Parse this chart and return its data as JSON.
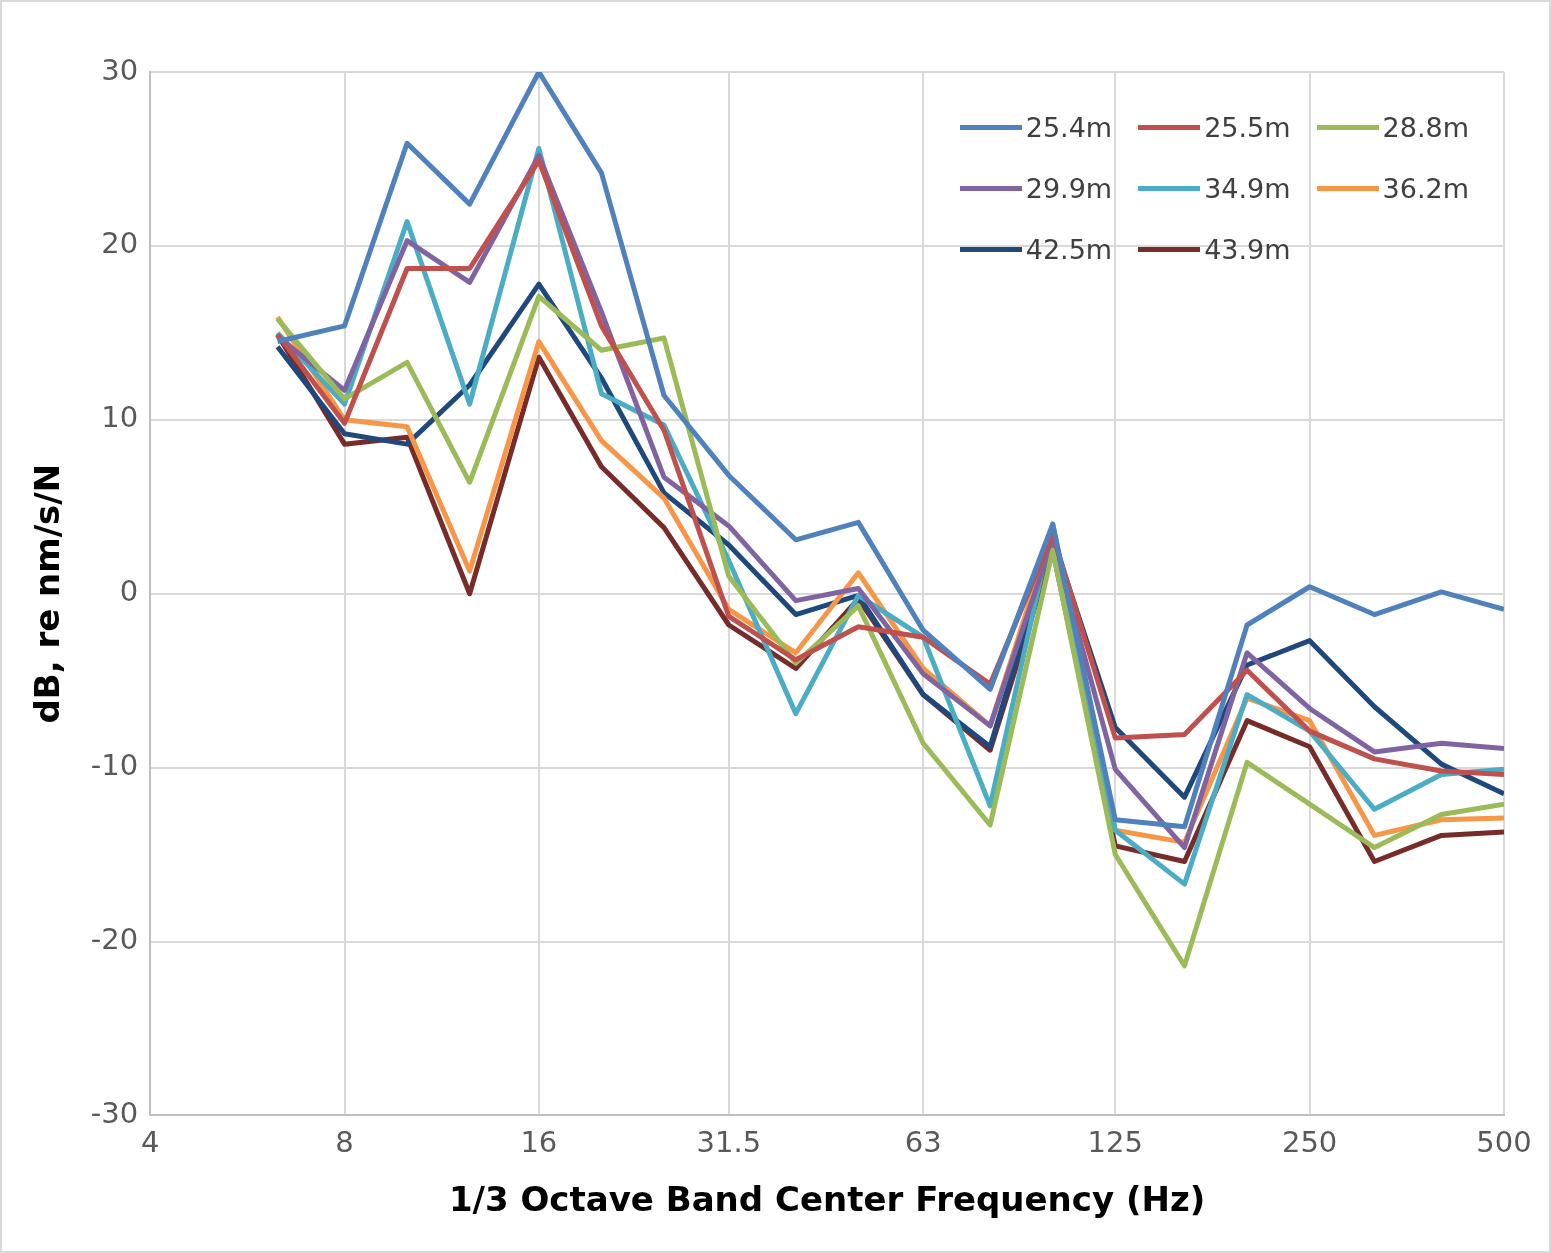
{
  "chart_data": {
    "type": "line",
    "xlabel": "1/3 Octave Band Center Frequency (Hz)",
    "ylabel": "dB, re nm/s/N",
    "log": "x",
    "x": [
      6.3,
      8,
      10,
      12.5,
      16,
      20,
      25,
      31.5,
      40,
      50,
      63,
      80,
      100,
      125,
      160,
      200,
      250,
      315,
      400,
      500
    ],
    "xlim": [
      4,
      500
    ],
    "xticks": [
      4,
      8,
      16,
      31.5,
      63,
      125,
      250,
      500
    ],
    "ylim": [
      -30,
      30
    ],
    "yticks": [
      -30,
      -20,
      -10,
      0,
      10,
      20,
      30
    ],
    "grid": true,
    "legend": "top right",
    "marker": "none",
    "line_style": "solid",
    "series": [
      {
        "name": "25.4m",
        "color": "#4f81bd",
        "values": [
          14.5,
          15.4,
          25.9,
          22.4,
          30.0,
          24.2,
          11.4,
          6.8,
          3.1,
          4.1,
          -2.1,
          -5.5,
          4.0,
          -13.0,
          -13.4,
          -1.8,
          0.4,
          -1.2,
          0.1,
          -0.9
        ]
      },
      {
        "name": "25.5m",
        "color": "#c0504d",
        "values": [
          14.9,
          9.8,
          18.7,
          18.7,
          24.9,
          15.4,
          9.4,
          -1.3,
          -3.8,
          -1.9,
          -2.5,
          -5.2,
          3.4,
          -8.3,
          -8.1,
          -4.4,
          -7.9,
          -9.5,
          -10.2,
          -10.4
        ]
      },
      {
        "name": "28.8m",
        "color": "#9bbb59",
        "values": [
          15.8,
          11.2,
          13.3,
          6.4,
          17.1,
          14.0,
          14.7,
          1.0,
          -4.0,
          -0.7,
          -8.6,
          -13.3,
          2.5,
          -15.0,
          -21.4,
          -9.7,
          -12.1,
          -14.6,
          -12.7,
          -12.1
        ]
      },
      {
        "name": "29.9m",
        "color": "#8064a2",
        "values": [
          14.8,
          11.7,
          20.3,
          17.9,
          25.2,
          16.2,
          6.7,
          3.9,
          -0.4,
          0.3,
          -4.6,
          -7.6,
          3.1,
          -10.1,
          -14.6,
          -3.4,
          -6.6,
          -9.1,
          -8.6,
          -8.9
        ]
      },
      {
        "name": "34.9m",
        "color": "#4bacc6",
        "values": [
          15.0,
          10.9,
          21.4,
          10.9,
          25.6,
          11.5,
          9.7,
          1.9,
          -6.9,
          -0.1,
          -2.5,
          -12.2,
          4.0,
          -13.6,
          -16.7,
          -5.8,
          -7.9,
          -12.4,
          -10.4,
          -10.1
        ]
      },
      {
        "name": "36.2m",
        "color": "#f79646",
        "values": [
          15.9,
          10.0,
          9.6,
          1.3,
          14.5,
          8.8,
          5.5,
          -0.9,
          -3.4,
          1.2,
          -4.3,
          -7.6,
          3.7,
          -13.6,
          -14.3,
          -6.0,
          -7.3,
          -13.9,
          -13.0,
          -12.9
        ]
      },
      {
        "name": "42.5m",
        "color": "#1f497d",
        "values": [
          14.2,
          9.2,
          8.6,
          12.0,
          17.8,
          12.4,
          5.8,
          2.8,
          -1.2,
          -0.1,
          -5.8,
          -8.8,
          3.2,
          -7.7,
          -11.7,
          -4.1,
          -2.7,
          -6.5,
          -9.8,
          -11.5
        ]
      },
      {
        "name": "43.9m",
        "color": "#772c2a",
        "values": [
          14.9,
          8.6,
          9.0,
          0.0,
          13.6,
          7.3,
          3.8,
          -1.8,
          -4.3,
          -0.3,
          -5.8,
          -9.0,
          2.5,
          -14.5,
          -15.4,
          -7.3,
          -8.8,
          -15.4,
          -13.9,
          -13.7
        ]
      }
    ]
  }
}
